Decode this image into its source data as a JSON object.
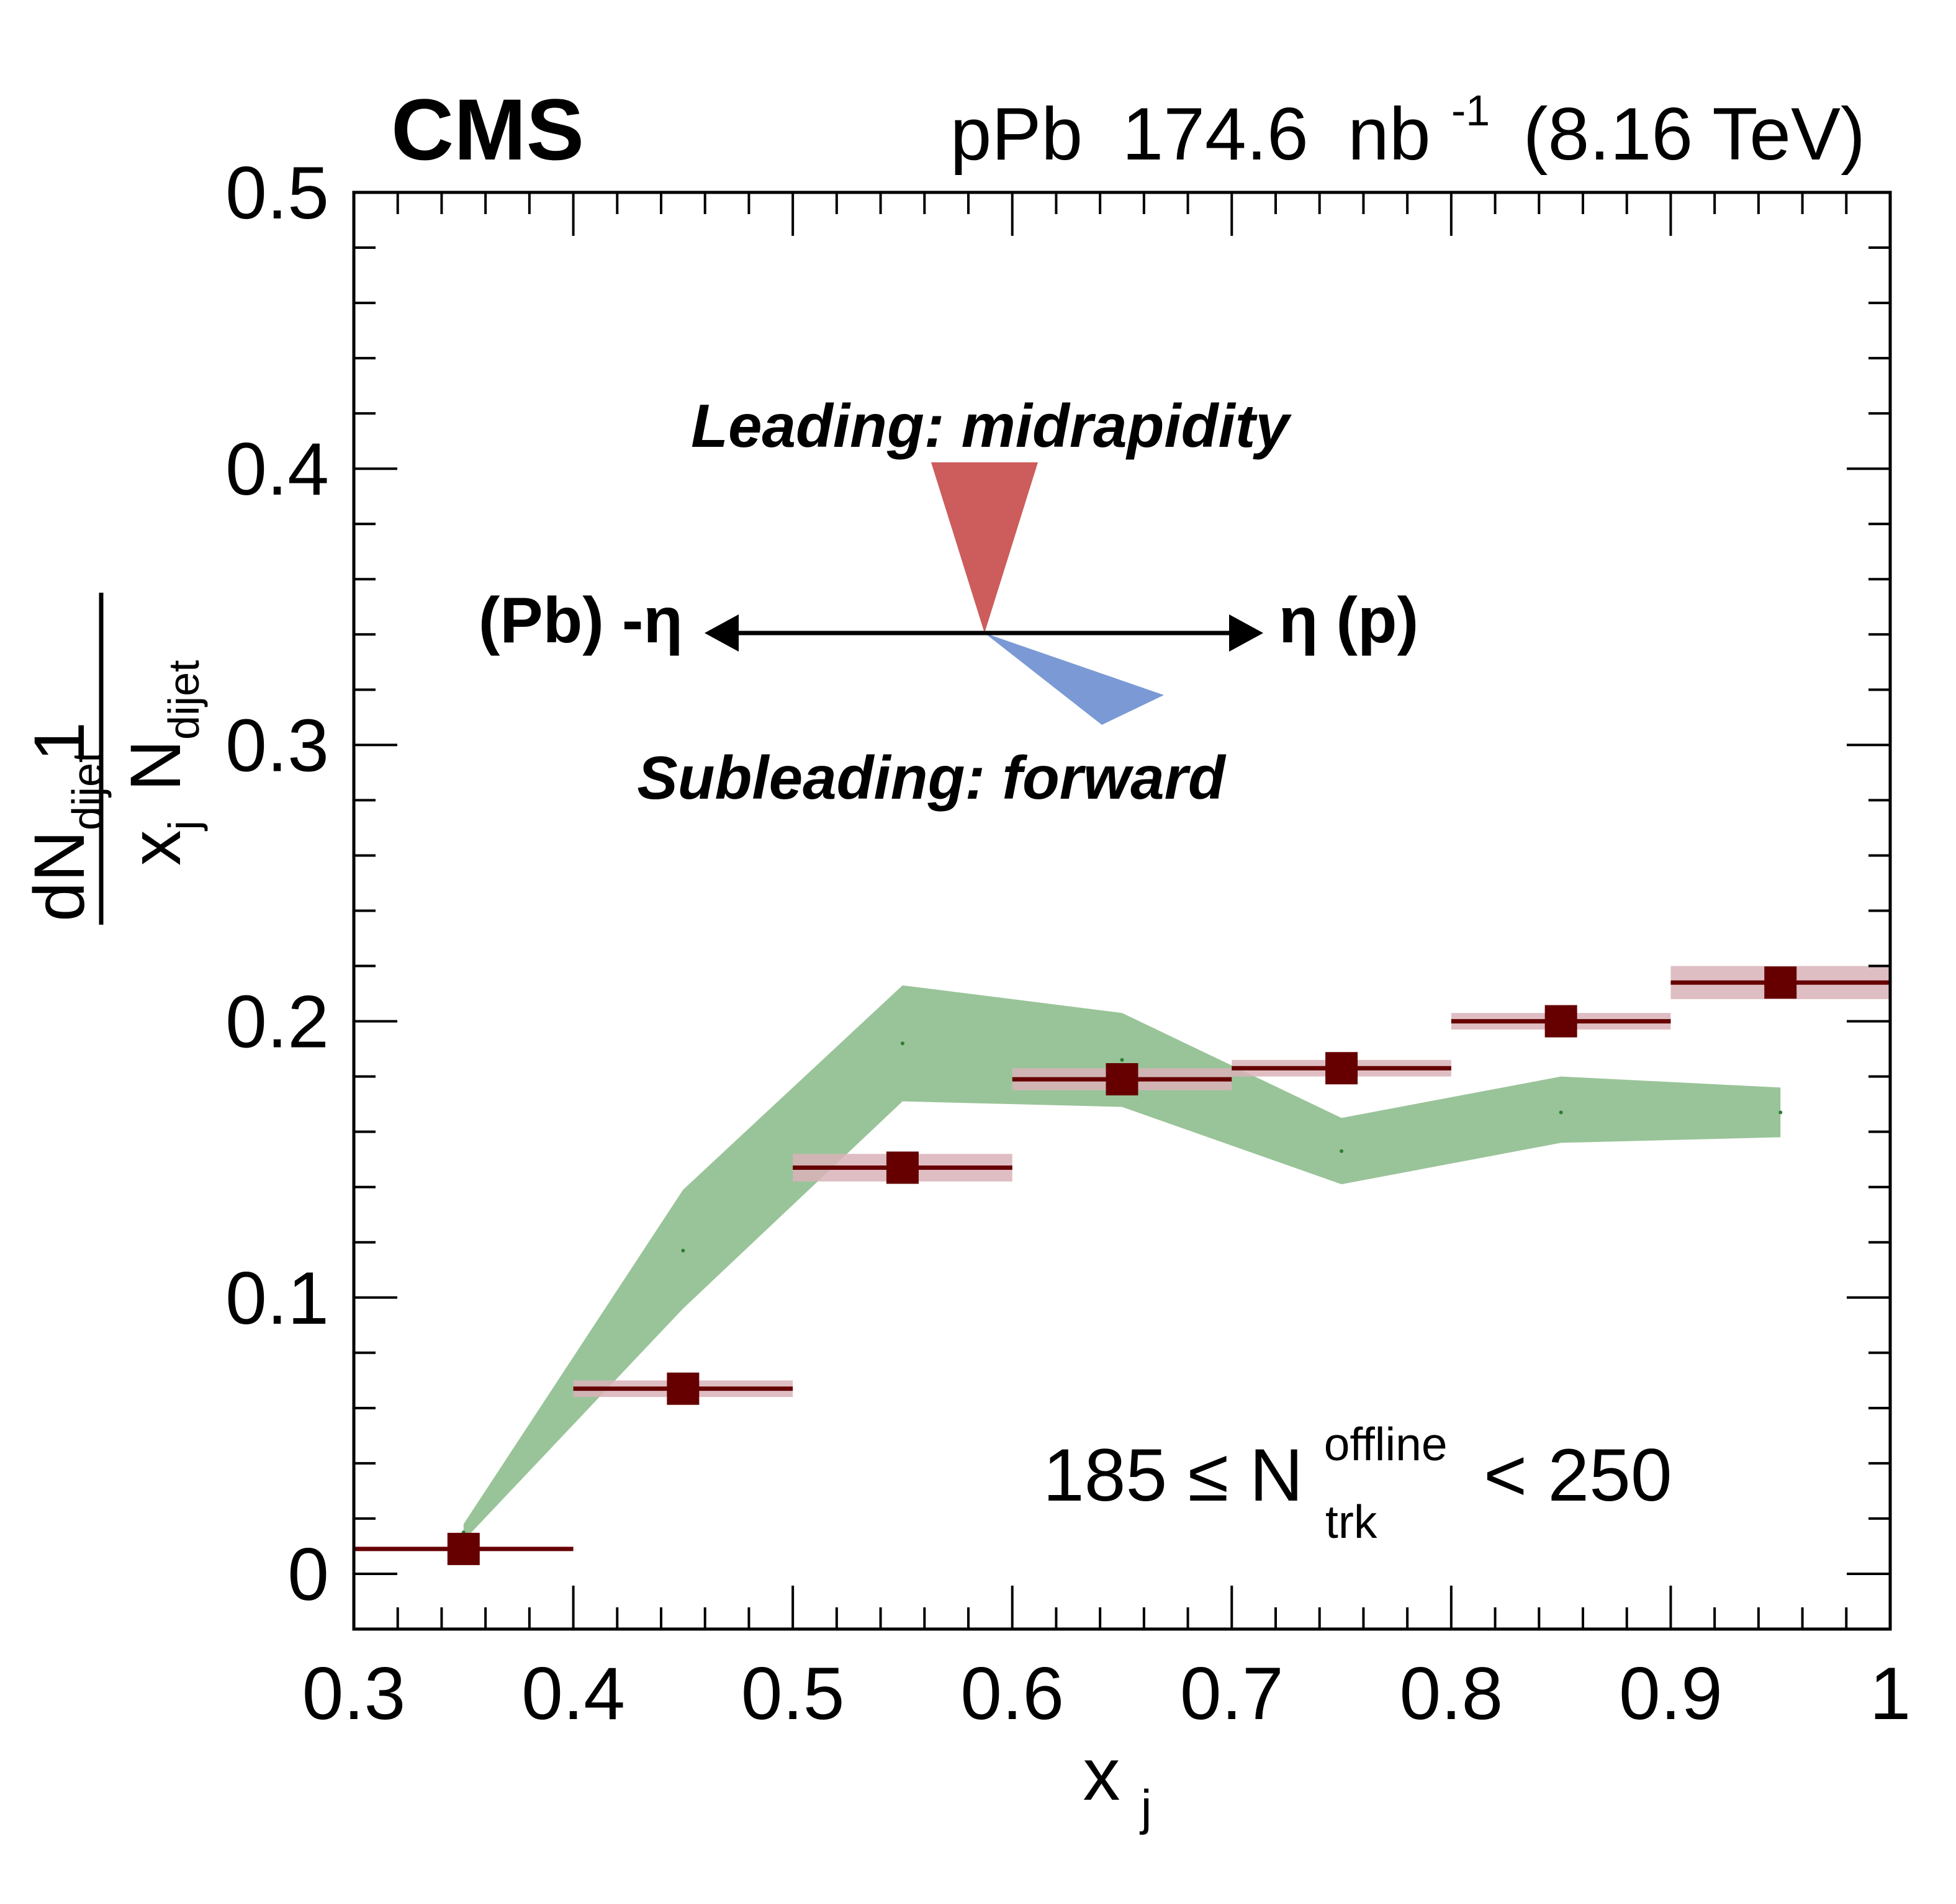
{
  "header": {
    "experiment": "CMS",
    "system": "pPb",
    "luminosity": "174.6",
    "lumi_unit": "nb",
    "lumi_exp": "-1",
    "energy": "(8.16 TeV)"
  },
  "diagram": {
    "leading_label": "Leading: midrapidity",
    "subleading_label": "Subleading: forward",
    "left_label": "(Pb) -η",
    "right_label": "η (p)",
    "leading_color": "#cd5c5c",
    "subleading_color": "#7b9ad5"
  },
  "selection": {
    "prefix": "185 ≤ N",
    "sup": "offline",
    "sub": "trk",
    "suffix": "< 250"
  },
  "colors": {
    "data_marker": "#660000",
    "syst_box": "#d9b3b8",
    "band": "#99c499",
    "band_line": "#2e7d32"
  },
  "chart_data": {
    "type": "scatter",
    "xlabel": "x",
    "xlabel_sub": "j",
    "ylabel": "1/N_dijet dN_dijet/x_j",
    "xlim": [
      0.3,
      1.0
    ],
    "ylim": [
      -0.02,
      0.5
    ],
    "xticks": [
      "0.3",
      "0.4",
      "0.5",
      "0.6",
      "0.7",
      "0.8",
      "0.9",
      "1"
    ],
    "yticks": [
      "0",
      "0.1",
      "0.2",
      "0.3",
      "0.4",
      "0.5"
    ],
    "series": [
      {
        "kind": "data",
        "x": [
          0.35,
          0.45,
          0.55,
          0.65,
          0.75,
          0.85,
          0.95
        ],
        "y": [
          0.009,
          0.067,
          0.147,
          0.179,
          0.183,
          0.2,
          0.214
        ],
        "x_halfwidth": 0.05,
        "syst": [
          0.0,
          0.003,
          0.005,
          0.004,
          0.003,
          0.003,
          0.006
        ]
      },
      {
        "kind": "band",
        "x": [
          0.35,
          0.45,
          0.55,
          0.65,
          0.75,
          0.85,
          0.95
        ],
        "lower": [
          0.012,
          0.096,
          0.171,
          0.169,
          0.141,
          0.156,
          0.158
        ],
        "upper": [
          0.018,
          0.139,
          0.213,
          0.203,
          0.165,
          0.18,
          0.176
        ],
        "center": [
          0.015,
          0.117,
          0.192,
          0.186,
          0.153,
          0.167,
          0.167
        ]
      }
    ]
  }
}
